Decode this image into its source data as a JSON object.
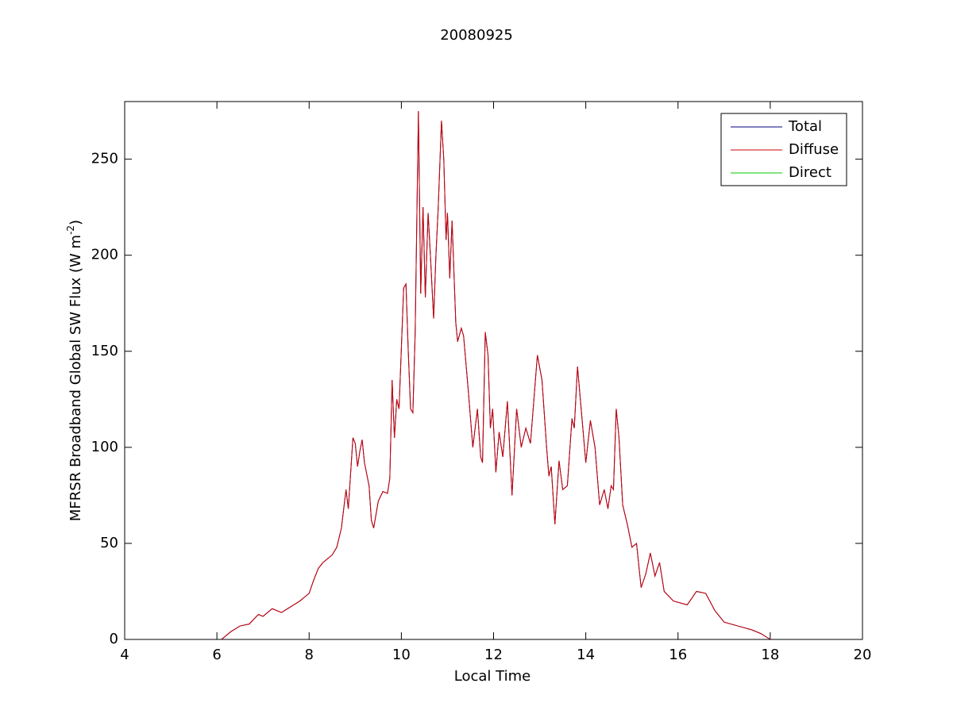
{
  "chart_data": {
    "type": "line",
    "title": "20080925",
    "xlabel": "Local Time",
    "ylabel": {
      "text": "MFRSR Broadband Global SW Flux (W m",
      "superscript": "-2",
      "suffix": ")"
    },
    "xlim": [
      4,
      20
    ],
    "xticks": [
      4,
      6,
      8,
      10,
      12,
      14,
      16,
      18,
      20
    ],
    "ylim": [
      0,
      280
    ],
    "yticks": [
      0,
      50,
      100,
      150,
      200,
      250
    ],
    "legend": "northeast",
    "grid": false,
    "x": [
      6.1,
      6.3,
      6.5,
      6.7,
      6.9,
      7.0,
      7.2,
      7.4,
      7.6,
      7.8,
      8.0,
      8.1,
      8.2,
      8.3,
      8.4,
      8.5,
      8.6,
      8.7,
      8.8,
      8.85,
      8.95,
      9.0,
      9.05,
      9.1,
      9.15,
      9.2,
      9.3,
      9.35,
      9.4,
      9.5,
      9.6,
      9.7,
      9.75,
      9.8,
      9.85,
      9.9,
      9.95,
      10.05,
      10.1,
      10.15,
      10.2,
      10.25,
      10.3,
      10.37,
      10.42,
      10.47,
      10.52,
      10.58,
      10.63,
      10.7,
      10.75,
      10.8,
      10.87,
      10.92,
      10.97,
      11.0,
      11.05,
      11.1,
      11.18,
      11.22,
      11.3,
      11.35,
      11.45,
      11.55,
      11.65,
      11.72,
      11.76,
      11.82,
      11.88,
      11.93,
      11.98,
      12.05,
      12.12,
      12.2,
      12.3,
      12.4,
      12.5,
      12.6,
      12.7,
      12.8,
      12.95,
      13.05,
      13.15,
      13.2,
      13.25,
      13.33,
      13.42,
      13.5,
      13.6,
      13.7,
      13.75,
      13.82,
      13.9,
      14.0,
      14.1,
      14.2,
      14.3,
      14.4,
      14.48,
      14.55,
      14.6,
      14.66,
      14.72,
      14.8,
      14.9,
      15.0,
      15.1,
      15.2,
      15.3,
      15.4,
      15.5,
      15.6,
      15.7,
      15.9,
      16.2,
      16.4,
      16.6,
      16.8,
      17.0,
      17.3,
      17.6,
      17.8,
      18.0
    ],
    "series": [
      {
        "name": "Total",
        "color": "#00007f",
        "values": [
          0,
          4,
          7,
          8,
          13,
          12,
          16,
          14,
          17,
          20,
          24,
          31,
          37,
          40,
          42,
          44,
          48,
          58,
          78,
          68,
          105,
          102,
          90,
          98,
          104,
          92,
          80,
          62,
          58,
          72,
          77,
          76,
          84,
          135,
          105,
          125,
          120,
          183,
          185,
          150,
          120,
          118,
          160,
          275,
          180,
          225,
          178,
          222,
          200,
          167,
          200,
          225,
          270,
          250,
          208,
          222,
          188,
          218,
          165,
          155,
          162,
          158,
          130,
          100,
          120,
          95,
          92,
          160,
          148,
          110,
          120,
          87,
          108,
          95,
          124,
          75,
          120,
          100,
          110,
          102,
          148,
          135,
          100,
          85,
          90,
          60,
          93,
          78,
          80,
          115,
          110,
          142,
          120,
          92,
          114,
          100,
          70,
          78,
          68,
          80,
          78,
          120,
          105,
          70,
          60,
          48,
          50,
          27,
          34,
          45,
          33,
          40,
          25,
          20,
          18,
          25,
          24,
          15,
          9,
          7,
          5,
          3,
          0
        ]
      },
      {
        "name": "Diffuse",
        "color": "#cc0000",
        "values": [
          0,
          4,
          7,
          8,
          13,
          12,
          16,
          14,
          17,
          20,
          24,
          31,
          37,
          40,
          42,
          44,
          48,
          58,
          78,
          68,
          105,
          102,
          90,
          98,
          104,
          92,
          80,
          62,
          58,
          72,
          77,
          76,
          84,
          135,
          105,
          125,
          120,
          183,
          185,
          150,
          120,
          118,
          160,
          275,
          180,
          225,
          178,
          222,
          200,
          167,
          200,
          225,
          270,
          250,
          208,
          222,
          188,
          218,
          165,
          155,
          162,
          158,
          130,
          100,
          120,
          95,
          92,
          160,
          148,
          110,
          120,
          87,
          108,
          95,
          124,
          75,
          120,
          100,
          110,
          102,
          148,
          135,
          100,
          85,
          90,
          60,
          93,
          78,
          80,
          115,
          110,
          142,
          120,
          92,
          114,
          100,
          70,
          78,
          68,
          80,
          78,
          120,
          105,
          70,
          60,
          48,
          50,
          27,
          34,
          45,
          33,
          40,
          25,
          20,
          18,
          25,
          24,
          15,
          9,
          7,
          5,
          3,
          0
        ]
      },
      {
        "name": "Direct",
        "color": "#00cc00",
        "values": [
          0,
          0,
          0,
          0,
          0,
          0,
          0,
          0,
          0,
          0,
          0,
          0,
          0,
          0,
          0,
          0,
          0,
          0,
          0,
          0,
          0,
          0,
          0,
          0,
          0,
          0,
          0,
          0,
          0,
          0,
          0,
          0,
          0,
          0,
          0,
          0,
          0,
          0,
          0,
          0,
          0,
          0,
          0,
          0,
          0,
          0,
          0,
          0,
          0,
          0,
          0,
          0,
          0,
          0,
          0,
          0,
          0,
          0,
          0,
          0,
          0,
          0,
          0,
          0,
          0,
          0,
          0,
          0,
          0,
          0,
          0,
          0,
          0,
          0,
          0,
          0,
          0,
          0,
          0,
          0,
          0,
          0,
          0,
          0,
          0,
          0,
          0,
          0,
          0,
          0,
          0,
          0,
          0,
          0,
          0,
          0,
          0,
          0,
          0,
          0,
          0,
          0,
          0,
          0,
          0,
          0,
          0,
          0,
          0,
          0,
          0,
          0,
          0,
          0,
          0,
          0,
          0,
          0,
          0,
          0,
          0,
          0,
          0
        ]
      }
    ]
  }
}
